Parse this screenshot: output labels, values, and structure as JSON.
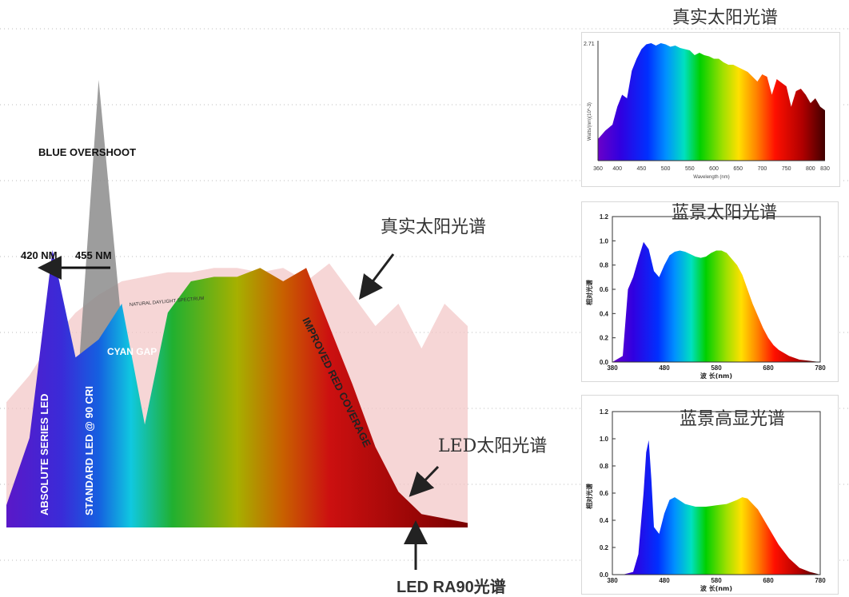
{
  "main": {
    "blue_overshoot": "BLUE OVERSHOOT",
    "nm420": "420 NM",
    "nm455": "455 NM",
    "cyan_gap": "CYAN GAP",
    "natural_daylight": "NATURAL DAYLIGHT SPECTRUM",
    "absolute_series": "ABSOLUTE SERIES LED",
    "standard_led": "STANDARD LED @ 90 CRI",
    "improved_red": "IMPROVED RED COVERAGE",
    "true_sun_label": "真实太阳光谱",
    "led_sun_label": "LED太阳光谱",
    "led_ra90_label": "LED RA90光谱"
  },
  "colors": {
    "overshoot_gray": "#8c8c8c",
    "daylight_pink": "#f2c4c4",
    "violet": "#6a1fd0",
    "red": "#e00000"
  },
  "chart_data": [
    {
      "id": "main-comparison",
      "type": "area",
      "series": [
        {
          "name": "NATURAL DAYLIGHT SPECTRUM",
          "x": [
            0,
            1,
            2,
            3,
            4,
            5,
            6,
            7,
            8,
            9,
            10,
            11,
            12,
            13,
            14,
            15,
            16,
            17,
            18,
            19,
            20
          ],
          "values": [
            0.28,
            0.34,
            0.42,
            0.48,
            0.52,
            0.55,
            0.56,
            0.57,
            0.57,
            0.58,
            0.58,
            0.57,
            0.58,
            0.55,
            0.59,
            0.52,
            0.45,
            0.5,
            0.4,
            0.5,
            0.45
          ]
        },
        {
          "name": "ABSOLUTE SERIES LED",
          "x": [
            0,
            1,
            2,
            3,
            4,
            5,
            6,
            7,
            8,
            9,
            10,
            11,
            12,
            13,
            14,
            15,
            16,
            17,
            18,
            19,
            20
          ],
          "values": [
            0.05,
            0.2,
            0.62,
            0.38,
            0.42,
            0.5,
            0.23,
            0.48,
            0.55,
            0.56,
            0.56,
            0.58,
            0.55,
            0.58,
            0.45,
            0.32,
            0.18,
            0.08,
            0.03,
            0.02,
            0.01
          ]
        },
        {
          "name": "STANDARD LED @ 90 CRI",
          "x": [
            0,
            1,
            2,
            3,
            4,
            5,
            6,
            7,
            8,
            9,
            10,
            11,
            12,
            13,
            14,
            15,
            16,
            17,
            18,
            19,
            20
          ],
          "values": [
            0.0,
            0.02,
            0.08,
            0.25,
            1.0,
            0.45,
            0.2,
            0.35,
            0.52,
            0.54,
            0.53,
            0.55,
            0.55,
            0.5,
            0.35,
            0.22,
            0.1,
            0.04,
            0.02,
            0.01,
            0.0
          ]
        }
      ]
    },
    {
      "id": "real-sun",
      "type": "area",
      "title": "真实太阳光谱",
      "ylabel": "Watts/(nm)(10^-3)",
      "xlabel": "Wavelength (nm)",
      "ytick_top": "2.71",
      "xticks": [
        "360",
        "400",
        "450",
        "500",
        "550",
        "600",
        "650",
        "700",
        "750",
        "800",
        "830"
      ],
      "x": [
        360,
        375,
        390,
        400,
        410,
        420,
        430,
        440,
        450,
        460,
        470,
        480,
        490,
        500,
        510,
        520,
        530,
        540,
        550,
        560,
        570,
        580,
        590,
        600,
        610,
        620,
        630,
        640,
        650,
        660,
        670,
        680,
        690,
        700,
        710,
        720,
        730,
        740,
        750,
        760,
        770,
        780,
        790,
        800,
        810,
        820,
        830
      ],
      "values": [
        0.18,
        0.25,
        0.3,
        0.45,
        0.55,
        0.52,
        0.75,
        0.85,
        0.93,
        0.97,
        0.98,
        0.96,
        0.98,
        0.97,
        0.95,
        0.96,
        0.94,
        0.93,
        0.92,
        0.88,
        0.9,
        0.88,
        0.87,
        0.85,
        0.85,
        0.82,
        0.8,
        0.8,
        0.78,
        0.76,
        0.74,
        0.7,
        0.66,
        0.72,
        0.7,
        0.55,
        0.68,
        0.65,
        0.62,
        0.45,
        0.58,
        0.6,
        0.55,
        0.48,
        0.52,
        0.45,
        0.42
      ]
    },
    {
      "id": "lanjing-sun",
      "type": "area",
      "title": "蓝景太阳光谱",
      "ylabel": "相对光谱",
      "xlabel": "波 长(nm)",
      "yticks": [
        "1.2",
        "1.0",
        "0.8",
        "0.6",
        "0.4",
        "0.2",
        "0.0"
      ],
      "xticks": [
        "380",
        "480",
        "580",
        "680",
        "780"
      ],
      "x": [
        380,
        400,
        410,
        420,
        430,
        440,
        450,
        460,
        470,
        480,
        490,
        500,
        510,
        520,
        530,
        540,
        550,
        560,
        570,
        580,
        590,
        600,
        610,
        620,
        630,
        640,
        650,
        660,
        670,
        680,
        690,
        700,
        720,
        740,
        760,
        780
      ],
      "values": [
        0.0,
        0.05,
        0.6,
        0.7,
        0.85,
        0.99,
        0.93,
        0.75,
        0.7,
        0.8,
        0.88,
        0.91,
        0.92,
        0.91,
        0.89,
        0.87,
        0.86,
        0.87,
        0.9,
        0.92,
        0.92,
        0.9,
        0.85,
        0.8,
        0.72,
        0.6,
        0.48,
        0.38,
        0.28,
        0.2,
        0.14,
        0.1,
        0.05,
        0.02,
        0.01,
        0.0
      ]
    },
    {
      "id": "lanjing-high-cri",
      "type": "area",
      "title": "蓝景高显光谱",
      "ylabel": "相对光谱",
      "xlabel": "波 长(nm)",
      "yticks": [
        "1.2",
        "1.0",
        "0.8",
        "0.6",
        "0.4",
        "0.2",
        "0.0"
      ],
      "xticks": [
        "380",
        "480",
        "580",
        "680",
        "780"
      ],
      "x": [
        380,
        400,
        420,
        430,
        440,
        445,
        450,
        455,
        460,
        470,
        480,
        490,
        500,
        520,
        540,
        560,
        580,
        600,
        620,
        630,
        640,
        660,
        680,
        700,
        720,
        740,
        760,
        780
      ],
      "values": [
        0.0,
        0.0,
        0.02,
        0.15,
        0.6,
        0.9,
        0.99,
        0.7,
        0.35,
        0.3,
        0.45,
        0.55,
        0.57,
        0.52,
        0.5,
        0.5,
        0.51,
        0.52,
        0.55,
        0.57,
        0.56,
        0.48,
        0.35,
        0.22,
        0.12,
        0.05,
        0.02,
        0.0
      ]
    }
  ]
}
